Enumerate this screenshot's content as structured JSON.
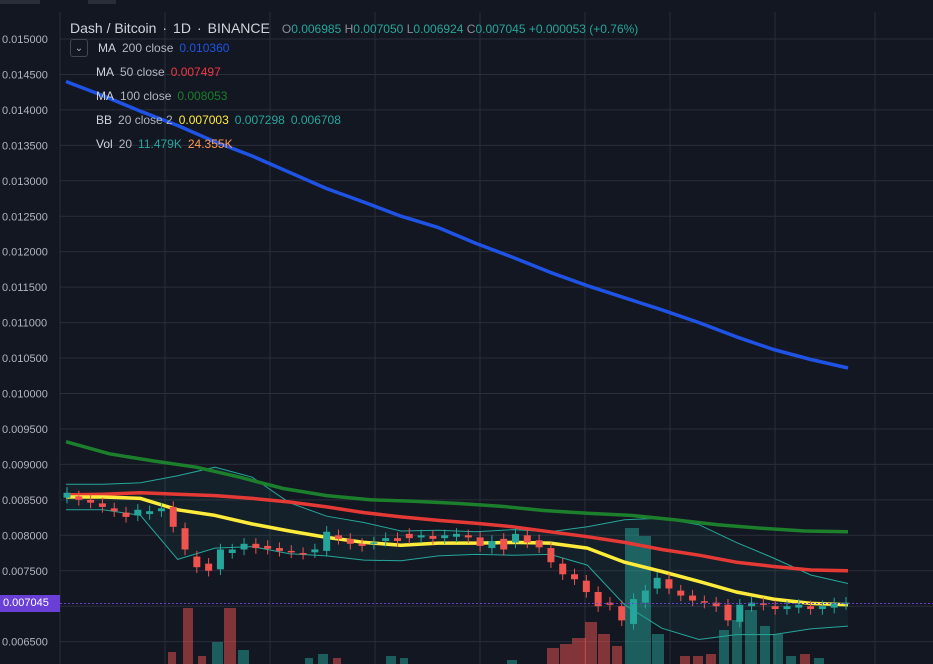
{
  "header": {
    "pair": "Dash / Bitcoin",
    "sep1": "·",
    "interval": "1D",
    "sep2": "·",
    "exchange": "BINANCE",
    "open_label": "O",
    "open": "0.006985",
    "high_label": "H",
    "high": "0.007050",
    "low_label": "L",
    "low": "0.006924",
    "close_label": "C",
    "close": "0.007045",
    "change": "+0.000053 (+0.76%)"
  },
  "indicators": [
    {
      "name": "MA",
      "params": "200 close",
      "values": [
        "0.010360"
      ],
      "colors": [
        "#1e53e5"
      ]
    },
    {
      "name": "MA",
      "params": "50 close",
      "values": [
        "0.007497"
      ],
      "colors": [
        "#f23645"
      ]
    },
    {
      "name": "MA",
      "params": "100 close",
      "values": [
        "0.008053"
      ],
      "colors": [
        "#1b7f2b"
      ]
    },
    {
      "name": "BB",
      "params": "20 close 2",
      "values": [
        "0.007003",
        "0.007298",
        "0.006708"
      ],
      "colors": [
        "#ffeb3b",
        "#26a69a",
        "#26a69a"
      ]
    },
    {
      "name": "Vol",
      "params": "20",
      "values": [
        "11.479K",
        "24.355K"
      ],
      "colors": [
        "#26a69a",
        "#ff9850"
      ]
    }
  ],
  "price_tag": "0.007045",
  "colors": {
    "background": "#131722",
    "grid": "#2a2e39",
    "up": "#26a69a",
    "down": "#ef5350",
    "ma200": "#1e53e5",
    "ma50": "#e53935",
    "ma100": "#1b7f2b",
    "bb_basis": "#ffeb3b",
    "bb_band": "#26a69a",
    "price_tag": "#6a3fd6"
  },
  "chart_data": {
    "type": "candlestick",
    "y_ticks": [
      "0.015000",
      "0.014500",
      "0.014000",
      "0.013500",
      "0.013000",
      "0.012500",
      "0.012000",
      "0.011500",
      "0.011000",
      "0.010500",
      "0.010000",
      "0.009500",
      "0.009000",
      "0.008500",
      "0.008000",
      "0.007500",
      "0.007000",
      "0.006500"
    ],
    "ylim": [
      0.00635,
      0.01525
    ],
    "series": [
      {
        "name": "MA 200 close",
        "values": [
          0.0144,
          0.0142,
          0.01398,
          0.01378,
          0.01355,
          0.01335,
          0.01312,
          0.01289,
          0.0127,
          0.0125,
          0.01234,
          0.01212,
          0.01192,
          0.01171,
          0.01152,
          0.01135,
          0.01118,
          0.011,
          0.0108,
          0.01062,
          0.01048,
          0.01036
        ]
      },
      {
        "name": "MA 50 close",
        "values": [
          0.00857,
          0.00858,
          0.0086,
          0.00858,
          0.00856,
          0.00852,
          0.00847,
          0.0084,
          0.00832,
          0.00826,
          0.00821,
          0.00817,
          0.00812,
          0.00805,
          0.00798,
          0.0079,
          0.0078,
          0.00772,
          0.00762,
          0.00756,
          0.00751,
          0.0075
        ]
      },
      {
        "name": "MA 100 close",
        "values": [
          0.00932,
          0.00915,
          0.00905,
          0.00896,
          0.00882,
          0.00866,
          0.00856,
          0.0085,
          0.00848,
          0.00845,
          0.00841,
          0.00835,
          0.00831,
          0.00828,
          0.00822,
          0.00815,
          0.0081,
          0.00806,
          0.00805
        ]
      },
      {
        "name": "BB 20 close 2 basis",
        "values": [
          0.00854,
          0.00854,
          0.00852,
          0.00836,
          0.00828,
          0.00816,
          0.00806,
          0.00797,
          0.0079,
          0.00786,
          0.00789,
          0.00789,
          0.0079,
          0.00789,
          0.00782,
          0.00762,
          0.00749,
          0.00735,
          0.0072,
          0.0071,
          0.00704,
          0.00702
        ]
      }
    ],
    "volume": "24.355K"
  }
}
